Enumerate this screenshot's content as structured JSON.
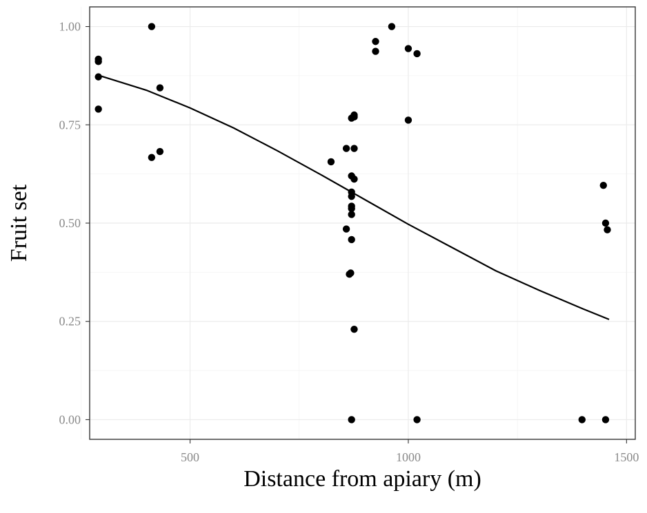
{
  "chart_data": {
    "type": "scatter",
    "title": "",
    "xlabel": "Distance from apiary (m)",
    "ylabel": "Fruit set",
    "xlim": [
      270,
      1520
    ],
    "ylim": [
      -0.05,
      1.05
    ],
    "x_ticks": [
      500,
      1000,
      1500
    ],
    "x_tick_labels": [
      "500",
      "1000",
      "1500"
    ],
    "x_minor_ticks": [
      250,
      750,
      1250
    ],
    "y_ticks": [
      0,
      0.25,
      0.5,
      0.75,
      1.0
    ],
    "y_tick_labels": [
      "0.00",
      "0.25",
      "0.50",
      "0.75",
      "1.00"
    ],
    "y_minor_ticks": [
      0.125,
      0.375,
      0.625,
      0.875
    ],
    "grid": true,
    "points": [
      {
        "x": 290,
        "y": 0.917
      },
      {
        "x": 290,
        "y": 0.911
      },
      {
        "x": 290,
        "y": 0.872
      },
      {
        "x": 290,
        "y": 0.79
      },
      {
        "x": 412,
        "y": 1.0
      },
      {
        "x": 412,
        "y": 0.667
      },
      {
        "x": 431,
        "y": 0.844
      },
      {
        "x": 431,
        "y": 0.682
      },
      {
        "x": 823,
        "y": 0.656
      },
      {
        "x": 858,
        "y": 0.69
      },
      {
        "x": 858,
        "y": 0.485
      },
      {
        "x": 865,
        "y": 0.37
      },
      {
        "x": 868,
        "y": 0.373
      },
      {
        "x": 870,
        "y": 0.767
      },
      {
        "x": 870,
        "y": 0.62
      },
      {
        "x": 870,
        "y": 0.579
      },
      {
        "x": 870,
        "y": 0.568
      },
      {
        "x": 870,
        "y": 0.543
      },
      {
        "x": 870,
        "y": 0.537
      },
      {
        "x": 870,
        "y": 0.522
      },
      {
        "x": 870,
        "y": 0.458
      },
      {
        "x": 870,
        "y": 0.0
      },
      {
        "x": 876,
        "y": 0.775
      },
      {
        "x": 876,
        "y": 0.77
      },
      {
        "x": 876,
        "y": 0.69
      },
      {
        "x": 876,
        "y": 0.612
      },
      {
        "x": 876,
        "y": 0.23
      },
      {
        "x": 925,
        "y": 0.962
      },
      {
        "x": 925,
        "y": 0.937
      },
      {
        "x": 962,
        "y": 1.0
      },
      {
        "x": 1000,
        "y": 0.944
      },
      {
        "x": 1000,
        "y": 0.762
      },
      {
        "x": 1020,
        "y": 0.931
      },
      {
        "x": 1020,
        "y": 0.0
      },
      {
        "x": 1398,
        "y": 0.0
      },
      {
        "x": 1447,
        "y": 0.596
      },
      {
        "x": 1452,
        "y": 0.5
      },
      {
        "x": 1452,
        "y": 0.0
      },
      {
        "x": 1456,
        "y": 0.483
      }
    ],
    "trend_line": {
      "x": [
        290,
        400,
        500,
        600,
        700,
        800,
        900,
        1000,
        1100,
        1200,
        1300,
        1400,
        1460
      ],
      "y": [
        0.876,
        0.838,
        0.793,
        0.742,
        0.684,
        0.623,
        0.56,
        0.497,
        0.438,
        0.379,
        0.329,
        0.282,
        0.255
      ]
    }
  }
}
